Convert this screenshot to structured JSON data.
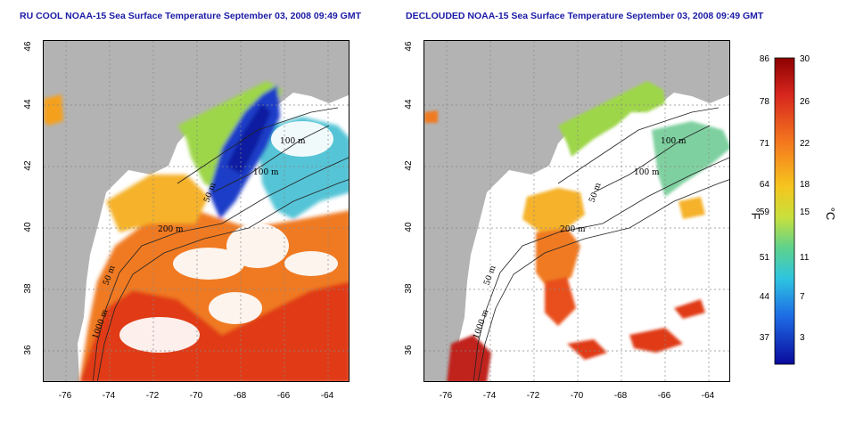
{
  "titles": {
    "left": "RU COOL NOAA-15 Sea Surface Temperature September 03, 2008 09:49 GMT",
    "right": "DECLOUDED NOAA-15 Sea Surface Temperature September 03, 2008 09:49 GMT"
  },
  "axes": {
    "lon_ticks": [
      "-76",
      "-74",
      "-72",
      "-70",
      "-68",
      "-66",
      "-64"
    ],
    "lat_ticks": [
      "44",
      "42",
      "40",
      "38",
      "36"
    ],
    "lat_top_label": "46"
  },
  "contour_labels": {
    "m100": "100 m",
    "m50": "50 m",
    "m200": "200 m",
    "m1000": "1000 m"
  },
  "colorbar": {
    "fahrenheit_ticks": [
      "86",
      "78",
      "71",
      "64",
      "59",
      "51",
      "44",
      "37"
    ],
    "celsius_ticks": [
      "30",
      "26",
      "22",
      "18",
      "15",
      "11",
      "7",
      "3"
    ],
    "fahrenheit_unit": "°F",
    "celsius_unit": "°C"
  },
  "colors": {
    "title": "#1a1aa6",
    "land": "#b3b3b3",
    "ocean_clear": "#ffffff"
  }
}
